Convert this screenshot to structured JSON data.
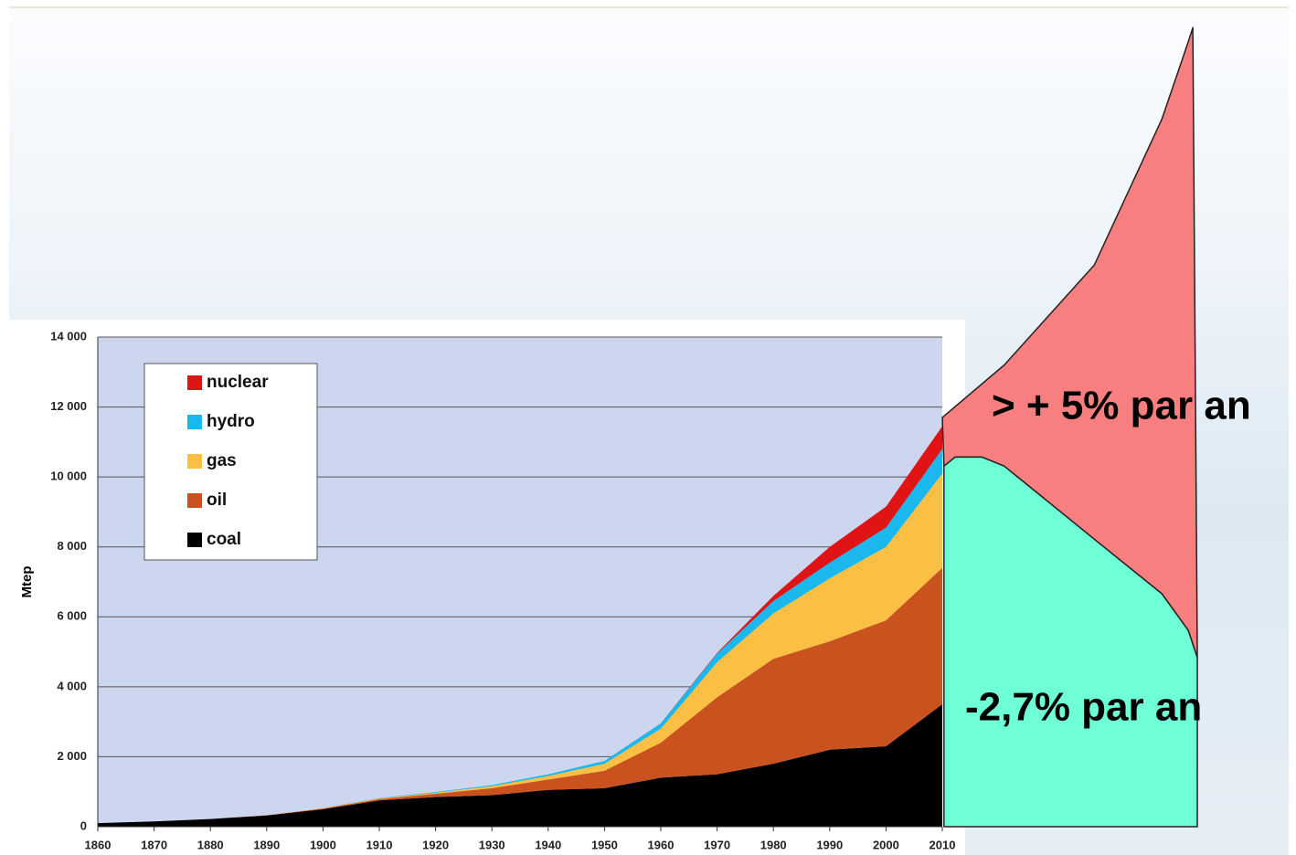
{
  "chart_data": {
    "type": "area",
    "stacked": true,
    "y_axis_label": "Mtep",
    "x": [
      1860,
      1870,
      1880,
      1890,
      1900,
      1910,
      1920,
      1930,
      1940,
      1950,
      1960,
      1970,
      1980,
      1990,
      2000,
      2010
    ],
    "series": [
      {
        "name": "coal",
        "color": "#000000",
        "values": [
          100,
          150,
          220,
          320,
          500,
          750,
          850,
          900,
          1050,
          1100,
          1400,
          1500,
          1800,
          2200,
          2300,
          3500
        ]
      },
      {
        "name": "oil",
        "color": "#c9521f",
        "values": [
          0,
          0,
          0,
          5,
          20,
          40,
          90,
          200,
          300,
          500,
          1000,
          2200,
          3000,
          3100,
          3600,
          3900
        ]
      },
      {
        "name": "gas",
        "color": "#fbc043",
        "values": [
          0,
          0,
          0,
          0,
          10,
          20,
          30,
          60,
          100,
          200,
          400,
          1000,
          1300,
          1800,
          2100,
          2700
        ]
      },
      {
        "name": "hydro",
        "color": "#1ab8ef",
        "values": [
          0,
          0,
          0,
          0,
          0,
          10,
          20,
          30,
          50,
          80,
          150,
          250,
          350,
          450,
          550,
          700
        ]
      },
      {
        "name": "nuclear",
        "color": "#e01414",
        "values": [
          0,
          0,
          0,
          0,
          0,
          0,
          0,
          0,
          0,
          0,
          5,
          20,
          150,
          450,
          600,
          650
        ]
      }
    ],
    "projections": [
      {
        "label": "> + 5% par an",
        "color": "#f77f7f",
        "x": [
          2010,
          2021,
          2037,
          2049,
          2053.7,
          2054.5,
          2055.3
        ],
        "values": [
          11700,
          13200,
          16060,
          20230,
          22450,
          22850,
          4830
        ]
      },
      {
        "label": "-2,7% par an",
        "color": "#6effd6",
        "x": [
          2010.3,
          2012.3,
          2017,
          2021,
          2037,
          2049,
          2053.7,
          2055.3
        ],
        "values": [
          10310,
          10570,
          10570,
          10310,
          8220,
          6660,
          5610,
          4830
        ]
      }
    ],
    "xlim": [
      1860,
      2010
    ],
    "xticks": [
      1860,
      1870,
      1880,
      1890,
      1900,
      1910,
      1920,
      1930,
      1940,
      1950,
      1960,
      1970,
      1980,
      1990,
      2000,
      2010
    ],
    "ylim": [
      0,
      14000
    ],
    "yticks": [
      0,
      {
        "value": 2000,
        "label": "2 000"
      },
      {
        "value": 4000,
        "label": "4 000"
      },
      {
        "value": 6000,
        "label": "6 000"
      },
      {
        "value": 8000,
        "label": "8 000"
      },
      {
        "value": 10000,
        "label": "10 000"
      },
      {
        "value": 12000,
        "label": "12 000"
      },
      {
        "value": 14000,
        "label": "14 000"
      }
    ],
    "grid": true,
    "legend": "upper left"
  }
}
